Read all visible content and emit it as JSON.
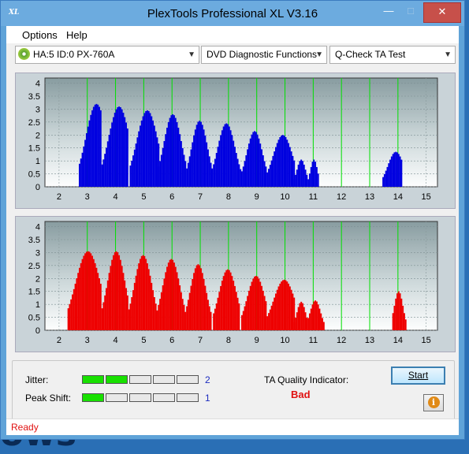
{
  "window": {
    "title": "PlexTools Professional XL V3.16",
    "icon_text": "XL"
  },
  "menu": [
    {
      "name": "menu-options",
      "label": "Options"
    },
    {
      "name": "menu-help",
      "label": "Help"
    }
  ],
  "toolbar": {
    "drive": "HA:5 ID:0  PX-760A",
    "function": "DVD Diagnostic Functions",
    "test": "Q-Check TA Test"
  },
  "chart_data": [
    {
      "type": "bar",
      "name": "upper",
      "color": "#0000e0",
      "grid_color": "#00e000",
      "x_ticks": [
        2,
        3,
        4,
        5,
        6,
        7,
        8,
        9,
        10,
        11,
        12,
        13,
        14,
        15
      ],
      "y_ticks": [
        "4",
        "3.5",
        "3",
        "2.5",
        "2",
        "1.5",
        "1",
        "0.5",
        "0"
      ],
      "xlim": [
        1.5,
        15.4
      ],
      "ylim": [
        0,
        4.2
      ],
      "peaks": [
        {
          "start": 2.7,
          "end": 3.45,
          "x": 3.3,
          "y": 3.2
        },
        {
          "start": 3.5,
          "end": 4.4,
          "x": 4.1,
          "y": 3.1
        },
        {
          "start": 4.5,
          "end": 5.5,
          "x": 5.1,
          "y": 2.95
        },
        {
          "start": 5.5,
          "end": 6.45,
          "x": 6.0,
          "y": 2.8
        },
        {
          "start": 6.5,
          "end": 7.4,
          "x": 6.95,
          "y": 2.55
        },
        {
          "start": 7.45,
          "end": 8.4,
          "x": 7.9,
          "y": 2.45
        },
        {
          "start": 8.45,
          "end": 9.3,
          "x": 8.9,
          "y": 2.15
        },
        {
          "start": 9.35,
          "end": 10.3,
          "x": 9.9,
          "y": 2.0
        },
        {
          "start": 10.3,
          "end": 10.75,
          "x": 10.55,
          "y": 1.05
        },
        {
          "start": 10.8,
          "end": 11.15,
          "x": 11.0,
          "y": 1.05
        },
        {
          "start": 13.45,
          "end": 14.1,
          "x": 13.9,
          "y": 1.35
        }
      ]
    },
    {
      "type": "bar",
      "name": "lower",
      "color": "#ee0000",
      "grid_color": "#00e000",
      "x_ticks": [
        2,
        3,
        4,
        5,
        6,
        7,
        8,
        9,
        10,
        11,
        12,
        13,
        14,
        15
      ],
      "y_ticks": [
        "4",
        "3.5",
        "3",
        "2.5",
        "2",
        "1.5",
        "1",
        "0.5",
        "0"
      ],
      "xlim": [
        1.5,
        15.4
      ],
      "ylim": [
        0,
        4.2
      ],
      "peaks": [
        {
          "start": 2.3,
          "end": 3.45,
          "x": 3.0,
          "y": 3.05
        },
        {
          "start": 3.5,
          "end": 4.4,
          "x": 4.0,
          "y": 3.05
        },
        {
          "start": 4.45,
          "end": 5.4,
          "x": 4.95,
          "y": 2.9
        },
        {
          "start": 5.45,
          "end": 6.4,
          "x": 5.95,
          "y": 2.75
        },
        {
          "start": 6.45,
          "end": 7.35,
          "x": 6.9,
          "y": 2.55
        },
        {
          "start": 7.45,
          "end": 8.35,
          "x": 7.95,
          "y": 2.35
        },
        {
          "start": 8.45,
          "end": 9.3,
          "x": 8.95,
          "y": 2.1
        },
        {
          "start": 9.35,
          "end": 10.3,
          "x": 9.95,
          "y": 1.95
        },
        {
          "start": 10.3,
          "end": 10.75,
          "x": 10.55,
          "y": 1.1
        },
        {
          "start": 10.8,
          "end": 11.35,
          "x": 11.05,
          "y": 1.15
        },
        {
          "start": 13.8,
          "end": 14.25,
          "x": 14.0,
          "y": 1.5
        }
      ]
    }
  ],
  "results": {
    "jitter_label": "Jitter:",
    "jitter_value": "2",
    "jitter_level": 2,
    "peak_label": "Peak Shift:",
    "peak_value": "1",
    "peak_level": 1,
    "meter_segments": 5,
    "ta_label": "TA Quality Indicator:",
    "ta_value": "Bad"
  },
  "buttons": {
    "start": "Start",
    "info_icon": "i"
  },
  "status": "Ready",
  "background_text": "ows"
}
